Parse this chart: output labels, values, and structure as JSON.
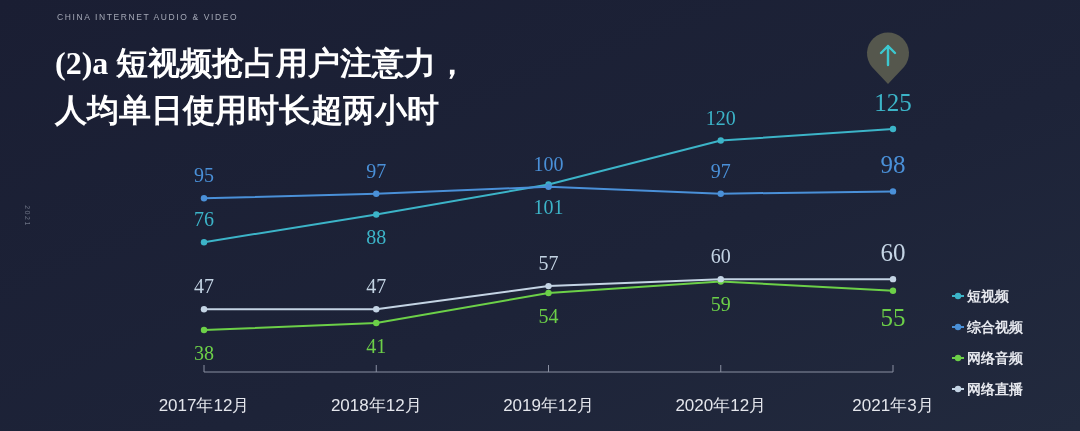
{
  "chart_data": {
    "type": "line",
    "title": "(2)a 短视频抢占用户注意力，人均单日使用时长超两小时",
    "annotations": [
      "CHINA INTERNET AUDIO & VIDEO",
      "2021"
    ],
    "categories": [
      "2017年12月",
      "2018年12月",
      "2019年12月",
      "2020年12月",
      "2021年3月"
    ],
    "series": [
      {
        "name": "短视频",
        "color": "#3cb4c8",
        "values": [
          76,
          88,
          101,
          120,
          125
        ]
      },
      {
        "name": "综合视频",
        "color": "#4a90d8",
        "values": [
          95,
          97,
          100,
          97,
          98
        ]
      },
      {
        "name": "网络音频",
        "color": "#6cd048",
        "values": [
          38,
          41,
          54,
          59,
          55
        ]
      },
      {
        "name": "网络直播",
        "color": "#c4d4e4",
        "values": [
          47,
          47,
          57,
          60,
          60
        ]
      }
    ],
    "data_labels": true,
    "legend": "right",
    "marker": "circle",
    "line_style": "solid",
    "tick_labels": "x"
  }
}
